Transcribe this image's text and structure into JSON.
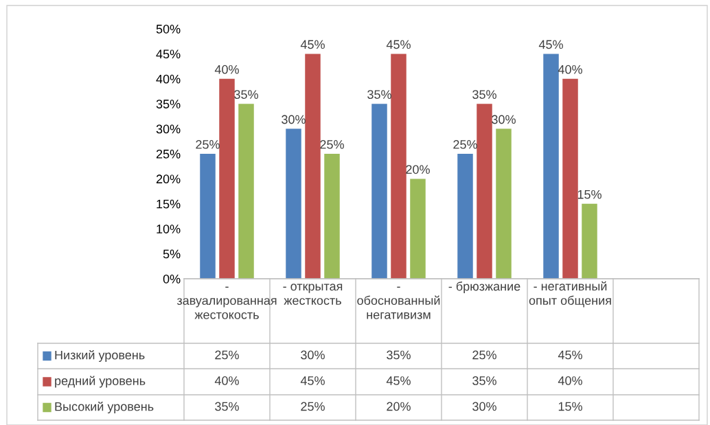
{
  "chart_data": {
    "type": "bar",
    "categories": [
      "- завуалированная жестокость",
      "- открытая жесткость",
      "- обоснованный негативизм",
      "- брюзжание",
      "- негативный опыт общения",
      null
    ],
    "series": [
      {
        "name": "Низкий уровень",
        "color": "#4f81bd",
        "values": [
          25,
          30,
          35,
          25,
          45,
          null
        ],
        "value_labels": [
          "25%",
          "30%",
          "35%",
          "25%",
          "45%",
          null
        ]
      },
      {
        "name": "редний уровень",
        "color": "#c0504d",
        "values": [
          40,
          45,
          45,
          35,
          40,
          null
        ],
        "value_labels": [
          "40%",
          "45%",
          "45%",
          "35%",
          "40%",
          null
        ]
      },
      {
        "name": "Высокий уровень",
        "color": "#9bbb59",
        "values": [
          35,
          25,
          20,
          30,
          15,
          null
        ],
        "value_labels": [
          "35%",
          "25%",
          "20%",
          "30%",
          "15%",
          null
        ]
      }
    ],
    "ylim": [
      0,
      50
    ],
    "yticks": [
      {
        "value": 0,
        "label": "0%"
      },
      {
        "value": 5,
        "label": "5%"
      },
      {
        "value": 10,
        "label": "10%"
      },
      {
        "value": 15,
        "label": "15%"
      },
      {
        "value": 20,
        "label": "20%"
      },
      {
        "value": 25,
        "label": "25%"
      },
      {
        "value": 30,
        "label": "30%"
      },
      {
        "value": 35,
        "label": "35%"
      },
      {
        "value": 40,
        "label": "40%"
      },
      {
        "value": 45,
        "label": "45%"
      },
      {
        "value": 50,
        "label": "50%"
      }
    ],
    "grid": false,
    "legend": "bottom"
  }
}
